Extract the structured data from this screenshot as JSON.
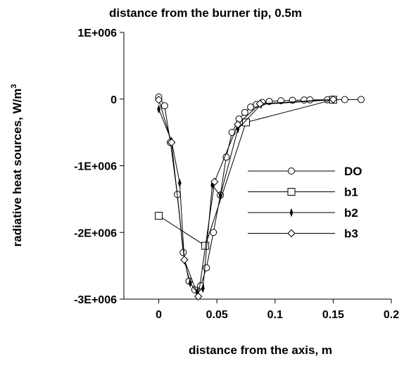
{
  "chart_data": {
    "type": "line",
    "title": "distance from the burner tip, 0.5m",
    "xlabel": "distance from the axis, m",
    "ylabel": "radiative heat sources, W/m",
    "ylabel_superscript": "3",
    "xlim": [
      -0.03,
      0.2
    ],
    "ylim": [
      -3000000,
      1000000
    ],
    "x_ticks": [
      0,
      0.05,
      0.1,
      0.15,
      0.2
    ],
    "x_tick_labels": [
      "0",
      "0.05",
      "0.1",
      "0.15",
      "0.2"
    ],
    "y_ticks": [
      1000000,
      0,
      -1000000,
      -2000000,
      -3000000
    ],
    "y_tick_labels": [
      "1E+006",
      "0",
      "-1E+006",
      "-2E+006",
      "-3E+006"
    ],
    "grid": false,
    "legend_position": "right",
    "line_color": "#000000",
    "series": [
      {
        "name": "DO",
        "marker": "circle",
        "x": [
          0,
          0.005,
          0.01,
          0.016,
          0.021,
          0.026,
          0.031,
          0.036,
          0.041,
          0.047,
          0.053,
          0.058,
          0.063,
          0.069,
          0.074,
          0.079,
          0.084,
          0.089,
          0.095,
          0.105,
          0.115,
          0.125,
          0.13,
          0.145,
          0.16,
          0.174
        ],
        "y": [
          30000,
          -100000,
          -650000,
          -1430000,
          -2300000,
          -2730000,
          -2860000,
          -2800000,
          -2530000,
          -2000000,
          -1440000,
          -870000,
          -500000,
          -300000,
          -200000,
          -120000,
          -80000,
          -50000,
          -35000,
          -25000,
          -18000,
          -14000,
          -12000,
          -10000,
          -8000,
          -7000
        ]
      },
      {
        "name": "b1",
        "marker": "square",
        "x": [
          0,
          0.04,
          0.075,
          0.15
        ],
        "y": [
          -1750000,
          -2200000,
          -350000,
          -10000
        ]
      },
      {
        "name": "b2",
        "marker": "thin-diamond",
        "x": [
          0,
          0.011,
          0.018,
          0.022,
          0.027,
          0.033,
          0.038,
          0.046,
          0.053,
          0.068,
          0.088,
          0.15
        ],
        "y": [
          -150000,
          -630000,
          -1260000,
          -2420000,
          -2760000,
          -2900000,
          -2840000,
          -1290000,
          -1450000,
          -450000,
          -80000,
          -10000
        ]
      },
      {
        "name": "b3",
        "marker": "diamond",
        "x": [
          0,
          0.011,
          0.022,
          0.034,
          0.048,
          0.068,
          0.087,
          0.15
        ],
        "y": [
          -10000,
          -650000,
          -2410000,
          -2960000,
          -1240000,
          -380000,
          -70000,
          -5000
        ]
      }
    ]
  }
}
